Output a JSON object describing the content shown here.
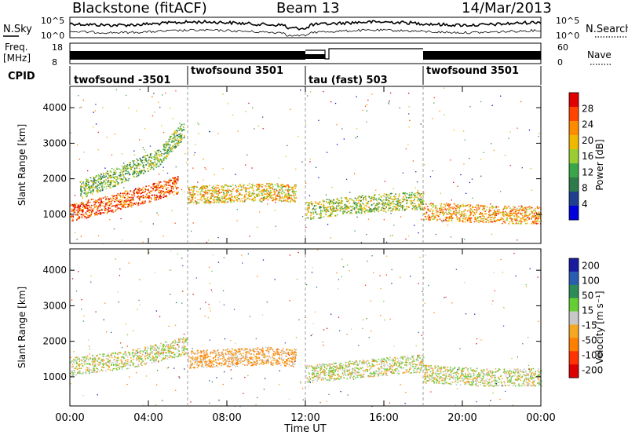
{
  "header": {
    "station": "Blackstone (fitACF)",
    "beam": "Beam 13",
    "date": "14/Mar/2013"
  },
  "noise_panel": {
    "left_label": "N.Sky",
    "right_label": "N.Search",
    "tick_top": "10^5",
    "tick_bottom": "10^0"
  },
  "freq_panel": {
    "left_label_1": "Freq.",
    "left_label_2": "[MHz]",
    "right_label": "Nave",
    "left_ticks": [
      "18",
      "8"
    ],
    "right_ticks": [
      "60",
      "0"
    ]
  },
  "cpid_panel": {
    "label": "CPID",
    "segments": [
      {
        "name": "twofsound -3501",
        "start_h": 0,
        "end_h": 6
      },
      {
        "name": "twofsound 3501",
        "start_h": 6,
        "end_h": 12
      },
      {
        "name": "tau (fast) 503",
        "start_h": 12,
        "end_h": 18
      },
      {
        "name": "twofsound 3501",
        "start_h": 18,
        "end_h": 24
      }
    ]
  },
  "x_axis": {
    "label": "Time UT",
    "ticks": [
      "00:00",
      "04:00",
      "08:00",
      "12:00",
      "16:00",
      "20:00",
      "00:00"
    ],
    "range_h": [
      0,
      24
    ]
  },
  "colors": {
    "power": [
      "#0000dd",
      "#1f3f8f",
      "#2e7a4a",
      "#3aa54a",
      "#9acd32",
      "#f0b800",
      "#ff8c00",
      "#ff4500",
      "#e00000"
    ],
    "velocity": [
      "#1a1aa0",
      "#2a5db0",
      "#2e8b57",
      "#66cd32",
      "#c8c8c8",
      "#f5a623",
      "#ff7f00",
      "#ff3300",
      "#dd0000"
    ]
  },
  "chart_data": [
    {
      "type": "heatmap",
      "title": "Power",
      "xlabel": "Time UT",
      "ylabel": "Slant Range [km]",
      "xlim": [
        0,
        24
      ],
      "ylim": [
        180,
        4600
      ],
      "yticks": [
        "1000",
        "2000",
        "3000",
        "4000"
      ],
      "colorbar": {
        "label": "Power [dB]",
        "ticks": [
          "4",
          "8",
          "12",
          "16",
          "20",
          "24",
          "28"
        ],
        "range": [
          0,
          32
        ]
      },
      "features": [
        {
          "name": "lower band",
          "t": [
            0,
            2,
            4,
            5.5
          ],
          "range_km": [
            1050,
            1300,
            1600,
            1850
          ],
          "value": 26
        },
        {
          "name": "upper band",
          "t": [
            0.5,
            2.5,
            4.5,
            5.8
          ],
          "range_km": [
            1700,
            2100,
            2600,
            3400
          ],
          "value": 14
        },
        {
          "name": "main echo",
          "t": [
            6,
            8,
            10,
            11.5
          ],
          "range_km": [
            1550,
            1600,
            1650,
            1600
          ],
          "value": 20
        },
        {
          "name": "tau echo",
          "t": [
            12,
            14,
            16,
            18
          ],
          "range_km": [
            1100,
            1250,
            1350,
            1400
          ],
          "value": 16
        },
        {
          "name": "late echo",
          "t": [
            18,
            20,
            22,
            24
          ],
          "range_km": [
            1100,
            1050,
            1000,
            1000
          ],
          "value": 22
        }
      ]
    },
    {
      "type": "heatmap",
      "title": "Velocity",
      "xlabel": "Time UT",
      "ylabel": "Slant Range [km]",
      "xlim": [
        0,
        24
      ],
      "ylim": [
        180,
        4600
      ],
      "yticks": [
        "1000",
        "2000",
        "3000",
        "4000"
      ],
      "colorbar": {
        "label": "Velocity [m s⁻¹]",
        "ticks": [
          "200",
          "100",
          "50",
          "15",
          "-15",
          "-50",
          "-100",
          "-200"
        ],
        "range": [
          -250,
          250
        ]
      },
      "features": [
        {
          "name": "early echo",
          "t": [
            0,
            3,
            6
          ],
          "range_km": [
            1300,
            1500,
            1900
          ],
          "value": 0
        },
        {
          "name": "main echo",
          "t": [
            6,
            8,
            10,
            11.5
          ],
          "range_km": [
            1500,
            1550,
            1600,
            1550
          ],
          "value": -60
        },
        {
          "name": "tau echo",
          "t": [
            12,
            15,
            18
          ],
          "range_km": [
            1100,
            1250,
            1400
          ],
          "value": 0
        },
        {
          "name": "late echo",
          "t": [
            18,
            21,
            24
          ],
          "range_km": [
            1100,
            1000,
            1000
          ],
          "value": 0
        }
      ]
    }
  ]
}
